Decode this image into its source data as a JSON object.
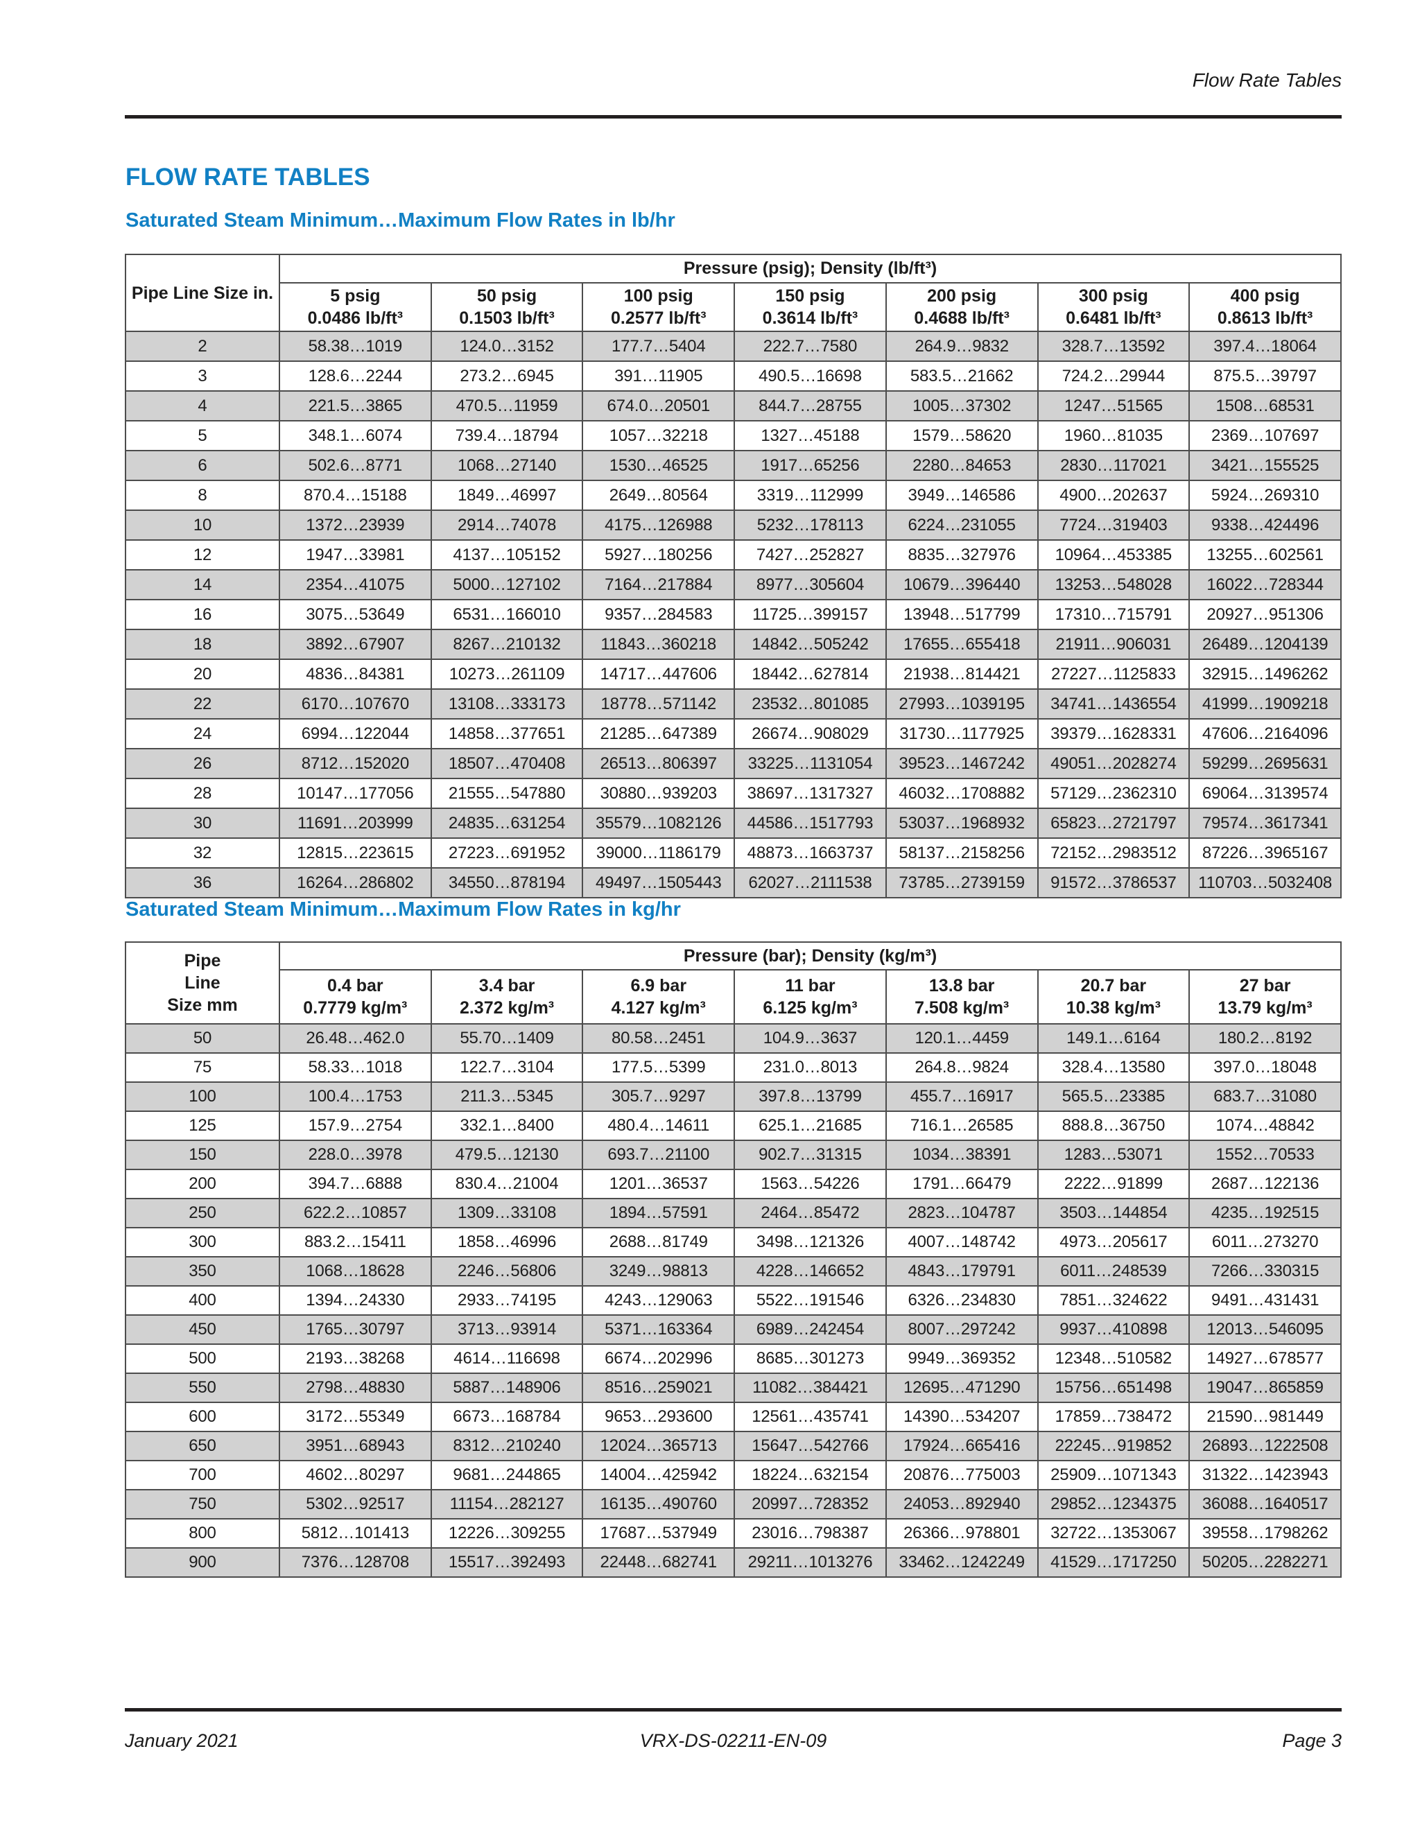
{
  "page": {
    "header_right": "Flow Rate Tables",
    "title": "FLOW RATE TABLES",
    "footer": {
      "left": "January 2021",
      "center": "VRX-DS-02211-EN-09",
      "right": "Page 3"
    }
  },
  "colors": {
    "accent_blue": "#1180c4",
    "row_band_gray": "#d2d2d2",
    "table_border": "#4c4c4c",
    "rule_black": "#231f20"
  },
  "table_lb": {
    "title": "Saturated Steam Minimum…Maximum Flow Rates in lb/hr",
    "corner_lines": [
      "Pipe Line Size in."
    ],
    "group_header": "Pressure (psig); Density (lb/ft³)",
    "columns": [
      {
        "line1": "5 psig",
        "line2": "0.0486 lb/ft³"
      },
      {
        "line1": "50 psig",
        "line2": "0.1503 lb/ft³"
      },
      {
        "line1": "100 psig",
        "line2": "0.2577 lb/ft³"
      },
      {
        "line1": "150 psig",
        "line2": "0.3614 lb/ft³"
      },
      {
        "line1": "200 psig",
        "line2": "0.4688 lb/ft³"
      },
      {
        "line1": "300 psig",
        "line2": "0.6481 lb/ft³"
      },
      {
        "line1": "400 psig",
        "line2": "0.8613 lb/ft³"
      }
    ],
    "rows": [
      {
        "size": "2",
        "values": [
          "58.38…1019",
          "124.0…3152",
          "177.7…5404",
          "222.7…7580",
          "264.9…9832",
          "328.7…13592",
          "397.4…18064"
        ]
      },
      {
        "size": "3",
        "values": [
          "128.6…2244",
          "273.2…6945",
          "391…11905",
          "490.5…16698",
          "583.5…21662",
          "724.2…29944",
          "875.5…39797"
        ]
      },
      {
        "size": "4",
        "values": [
          "221.5…3865",
          "470.5…11959",
          "674.0…20501",
          "844.7…28755",
          "1005…37302",
          "1247…51565",
          "1508…68531"
        ]
      },
      {
        "size": "5",
        "values": [
          "348.1…6074",
          "739.4…18794",
          "1057…32218",
          "1327…45188",
          "1579…58620",
          "1960…81035",
          "2369…107697"
        ]
      },
      {
        "size": "6",
        "values": [
          "502.6…8771",
          "1068…27140",
          "1530…46525",
          "1917…65256",
          "2280…84653",
          "2830…117021",
          "3421…155525"
        ]
      },
      {
        "size": "8",
        "values": [
          "870.4…15188",
          "1849…46997",
          "2649…80564",
          "3319…112999",
          "3949…146586",
          "4900…202637",
          "5924…269310"
        ]
      },
      {
        "size": "10",
        "values": [
          "1372…23939",
          "2914…74078",
          "4175…126988",
          "5232…178113",
          "6224…231055",
          "7724…319403",
          "9338…424496"
        ]
      },
      {
        "size": "12",
        "values": [
          "1947…33981",
          "4137…105152",
          "5927…180256",
          "7427…252827",
          "8835…327976",
          "10964…453385",
          "13255…602561"
        ]
      },
      {
        "size": "14",
        "values": [
          "2354…41075",
          "5000…127102",
          "7164…217884",
          "8977…305604",
          "10679…396440",
          "13253…548028",
          "16022…728344"
        ]
      },
      {
        "size": "16",
        "values": [
          "3075…53649",
          "6531…166010",
          "9357…284583",
          "11725…399157",
          "13948…517799",
          "17310…715791",
          "20927…951306"
        ]
      },
      {
        "size": "18",
        "values": [
          "3892…67907",
          "8267…210132",
          "11843…360218",
          "14842…505242",
          "17655…655418",
          "21911…906031",
          "26489…1204139"
        ]
      },
      {
        "size": "20",
        "values": [
          "4836…84381",
          "10273…261109",
          "14717…447606",
          "18442…627814",
          "21938…814421",
          "27227…1125833",
          "32915…1496262"
        ]
      },
      {
        "size": "22",
        "values": [
          "6170…107670",
          "13108…333173",
          "18778…571142",
          "23532…801085",
          "27993…1039195",
          "34741…1436554",
          "41999…1909218"
        ]
      },
      {
        "size": "24",
        "values": [
          "6994…122044",
          "14858…377651",
          "21285…647389",
          "26674…908029",
          "31730…1177925",
          "39379…1628331",
          "47606…2164096"
        ]
      },
      {
        "size": "26",
        "values": [
          "8712…152020",
          "18507…470408",
          "26513…806397",
          "33225…1131054",
          "39523…1467242",
          "49051…2028274",
          "59299…2695631"
        ]
      },
      {
        "size": "28",
        "values": [
          "10147…177056",
          "21555…547880",
          "30880…939203",
          "38697…1317327",
          "46032…1708882",
          "57129…2362310",
          "69064…3139574"
        ]
      },
      {
        "size": "30",
        "values": [
          "11691…203999",
          "24835…631254",
          "35579…1082126",
          "44586…1517793",
          "53037…1968932",
          "65823…2721797",
          "79574…3617341"
        ]
      },
      {
        "size": "32",
        "values": [
          "12815…223615",
          "27223…691952",
          "39000…1186179",
          "48873…1663737",
          "58137…2158256",
          "72152…2983512",
          "87226…3965167"
        ]
      },
      {
        "size": "36",
        "values": [
          "16264…286802",
          "34550…878194",
          "49497…1505443",
          "62027…2111538",
          "73785…2739159",
          "91572…3786537",
          "110703…5032408"
        ]
      }
    ]
  },
  "table_kg": {
    "title": "Saturated Steam Minimum…Maximum Flow Rates in kg/hr",
    "corner_lines": [
      "Pipe",
      "Line",
      "Size mm"
    ],
    "group_header": "Pressure (bar); Density (kg/m³)",
    "columns": [
      {
        "line1": "0.4 bar",
        "line2": "0.7779 kg/m³"
      },
      {
        "line1": "3.4 bar",
        "line2": "2.372 kg/m³"
      },
      {
        "line1": "6.9 bar",
        "line2": "4.127 kg/m³"
      },
      {
        "line1": "11 bar",
        "line2": "6.125 kg/m³"
      },
      {
        "line1": "13.8 bar",
        "line2": "7.508 kg/m³"
      },
      {
        "line1": "20.7 bar",
        "line2": "10.38 kg/m³"
      },
      {
        "line1": "27 bar",
        "line2": "13.79 kg/m³"
      }
    ],
    "rows": [
      {
        "size": "50",
        "values": [
          "26.48…462.0",
          "55.70…1409",
          "80.58…2451",
          "104.9…3637",
          "120.1…4459",
          "149.1…6164",
          "180.2…8192"
        ]
      },
      {
        "size": "75",
        "values": [
          "58.33…1018",
          "122.7…3104",
          "177.5…5399",
          "231.0…8013",
          "264.8…9824",
          "328.4…13580",
          "397.0…18048"
        ]
      },
      {
        "size": "100",
        "values": [
          "100.4…1753",
          "211.3…5345",
          "305.7…9297",
          "397.8…13799",
          "455.7…16917",
          "565.5…23385",
          "683.7…31080"
        ]
      },
      {
        "size": "125",
        "values": [
          "157.9…2754",
          "332.1…8400",
          "480.4…14611",
          "625.1…21685",
          "716.1…26585",
          "888.8…36750",
          "1074…48842"
        ]
      },
      {
        "size": "150",
        "values": [
          "228.0…3978",
          "479.5…12130",
          "693.7…21100",
          "902.7…31315",
          "1034…38391",
          "1283…53071",
          "1552…70533"
        ]
      },
      {
        "size": "200",
        "values": [
          "394.7…6888",
          "830.4…21004",
          "1201…36537",
          "1563…54226",
          "1791…66479",
          "2222…91899",
          "2687…122136"
        ]
      },
      {
        "size": "250",
        "values": [
          "622.2…10857",
          "1309…33108",
          "1894…57591",
          "2464…85472",
          "2823…104787",
          "3503…144854",
          "4235…192515"
        ]
      },
      {
        "size": "300",
        "values": [
          "883.2…15411",
          "1858…46996",
          "2688…81749",
          "3498…121326",
          "4007…148742",
          "4973…205617",
          "6011…273270"
        ]
      },
      {
        "size": "350",
        "values": [
          "1068…18628",
          "2246…56806",
          "3249…98813",
          "4228…146652",
          "4843…179791",
          "6011…248539",
          "7266…330315"
        ]
      },
      {
        "size": "400",
        "values": [
          "1394…24330",
          "2933…74195",
          "4243…129063",
          "5522…191546",
          "6326…234830",
          "7851…324622",
          "9491…431431"
        ]
      },
      {
        "size": "450",
        "values": [
          "1765…30797",
          "3713…93914",
          "5371…163364",
          "6989…242454",
          "8007…297242",
          "9937…410898",
          "12013…546095"
        ]
      },
      {
        "size": "500",
        "values": [
          "2193…38268",
          "4614…116698",
          "6674…202996",
          "8685…301273",
          "9949…369352",
          "12348…510582",
          "14927…678577"
        ]
      },
      {
        "size": "550",
        "values": [
          "2798…48830",
          "5887…148906",
          "8516…259021",
          "11082…384421",
          "12695…471290",
          "15756…651498",
          "19047…865859"
        ]
      },
      {
        "size": "600",
        "values": [
          "3172…55349",
          "6673…168784",
          "9653…293600",
          "12561…435741",
          "14390…534207",
          "17859…738472",
          "21590…981449"
        ]
      },
      {
        "size": "650",
        "values": [
          "3951…68943",
          "8312…210240",
          "12024…365713",
          "15647…542766",
          "17924…665416",
          "22245…919852",
          "26893…1222508"
        ]
      },
      {
        "size": "700",
        "values": [
          "4602…80297",
          "9681…244865",
          "14004…425942",
          "18224…632154",
          "20876…775003",
          "25909…1071343",
          "31322…1423943"
        ]
      },
      {
        "size": "750",
        "values": [
          "5302…92517",
          "11154…282127",
          "16135…490760",
          "20997…728352",
          "24053…892940",
          "29852…1234375",
          "36088…1640517"
        ]
      },
      {
        "size": "800",
        "values": [
          "5812…101413",
          "12226…309255",
          "17687…537949",
          "23016…798387",
          "26366…978801",
          "32722…1353067",
          "39558…1798262"
        ]
      },
      {
        "size": "900",
        "values": [
          "7376…128708",
          "15517…392493",
          "22448…682741",
          "29211…1013276",
          "33462…1242249",
          "41529…1717250",
          "50205…2282271"
        ]
      }
    ]
  }
}
